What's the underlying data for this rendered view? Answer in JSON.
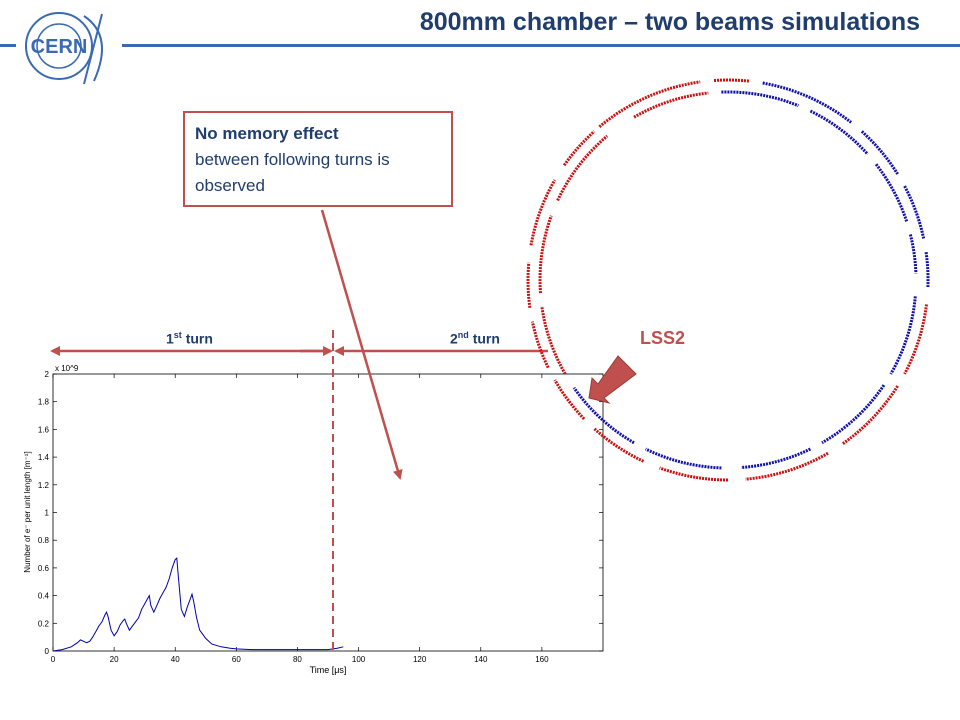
{
  "title": "800mm chamber – two beams simulations",
  "logo": {
    "text": "CERN"
  },
  "callout": {
    "bold": "No memory effect",
    "rest": "between following turns is observed"
  },
  "turns": {
    "first_num": "1",
    "first_sup": "st",
    "first_word": "turn",
    "second_num": "2",
    "second_sup": "nd",
    "second_word": "turn"
  },
  "ring_label": "LSS2",
  "colors": {
    "title": "#1f3d6d",
    "accent": "#c0504d",
    "rule": "#3a6ab3",
    "beam1": "#cc1111",
    "beam2": "#1111aa"
  },
  "chart_data": {
    "type": "line",
    "xlabel": "Time [μs]",
    "ylabel": "Number of e⁻ per unit length [m⁻¹]",
    "y_multiplier": "x 10^9",
    "xlim": [
      0,
      180
    ],
    "ylim": [
      0,
      2
    ],
    "xticks": [
      0,
      20,
      40,
      60,
      80,
      100,
      120,
      140,
      160
    ],
    "yticks": [
      0,
      0.2,
      0.4,
      0.6,
      0.8,
      1,
      1.2,
      1.4,
      1.6,
      1.8,
      2
    ],
    "series": [
      {
        "x": [
          0,
          3,
          6,
          8,
          9,
          10,
          11,
          12,
          13,
          14,
          15,
          16,
          17,
          17.5,
          18,
          19,
          20,
          21,
          22,
          23,
          23.5,
          24,
          25,
          26,
          27,
          28,
          29,
          30,
          31,
          31.5,
          32,
          33,
          34,
          35,
          36,
          37,
          38,
          39,
          40,
          40.5,
          41,
          42,
          43,
          44,
          45,
          45.5,
          46,
          47,
          48,
          50,
          52,
          55,
          58,
          60,
          65,
          70,
          75,
          80,
          85,
          90,
          93,
          95
        ],
        "y": [
          0,
          0.01,
          0.03,
          0.06,
          0.08,
          0.07,
          0.06,
          0.07,
          0.1,
          0.14,
          0.18,
          0.21,
          0.26,
          0.28,
          0.25,
          0.15,
          0.11,
          0.14,
          0.19,
          0.22,
          0.23,
          0.2,
          0.15,
          0.18,
          0.21,
          0.24,
          0.3,
          0.34,
          0.38,
          0.4,
          0.33,
          0.28,
          0.33,
          0.38,
          0.42,
          0.46,
          0.52,
          0.6,
          0.66,
          0.67,
          0.54,
          0.3,
          0.25,
          0.32,
          0.38,
          0.41,
          0.36,
          0.24,
          0.15,
          0.09,
          0.05,
          0.03,
          0.02,
          0.015,
          0.01,
          0.01,
          0.01,
          0.01,
          0.01,
          0.01,
          0.02,
          0.03
        ]
      }
    ],
    "annotations": [
      {
        "type": "vline",
        "x": 91,
        "style": "dashed"
      }
    ]
  }
}
